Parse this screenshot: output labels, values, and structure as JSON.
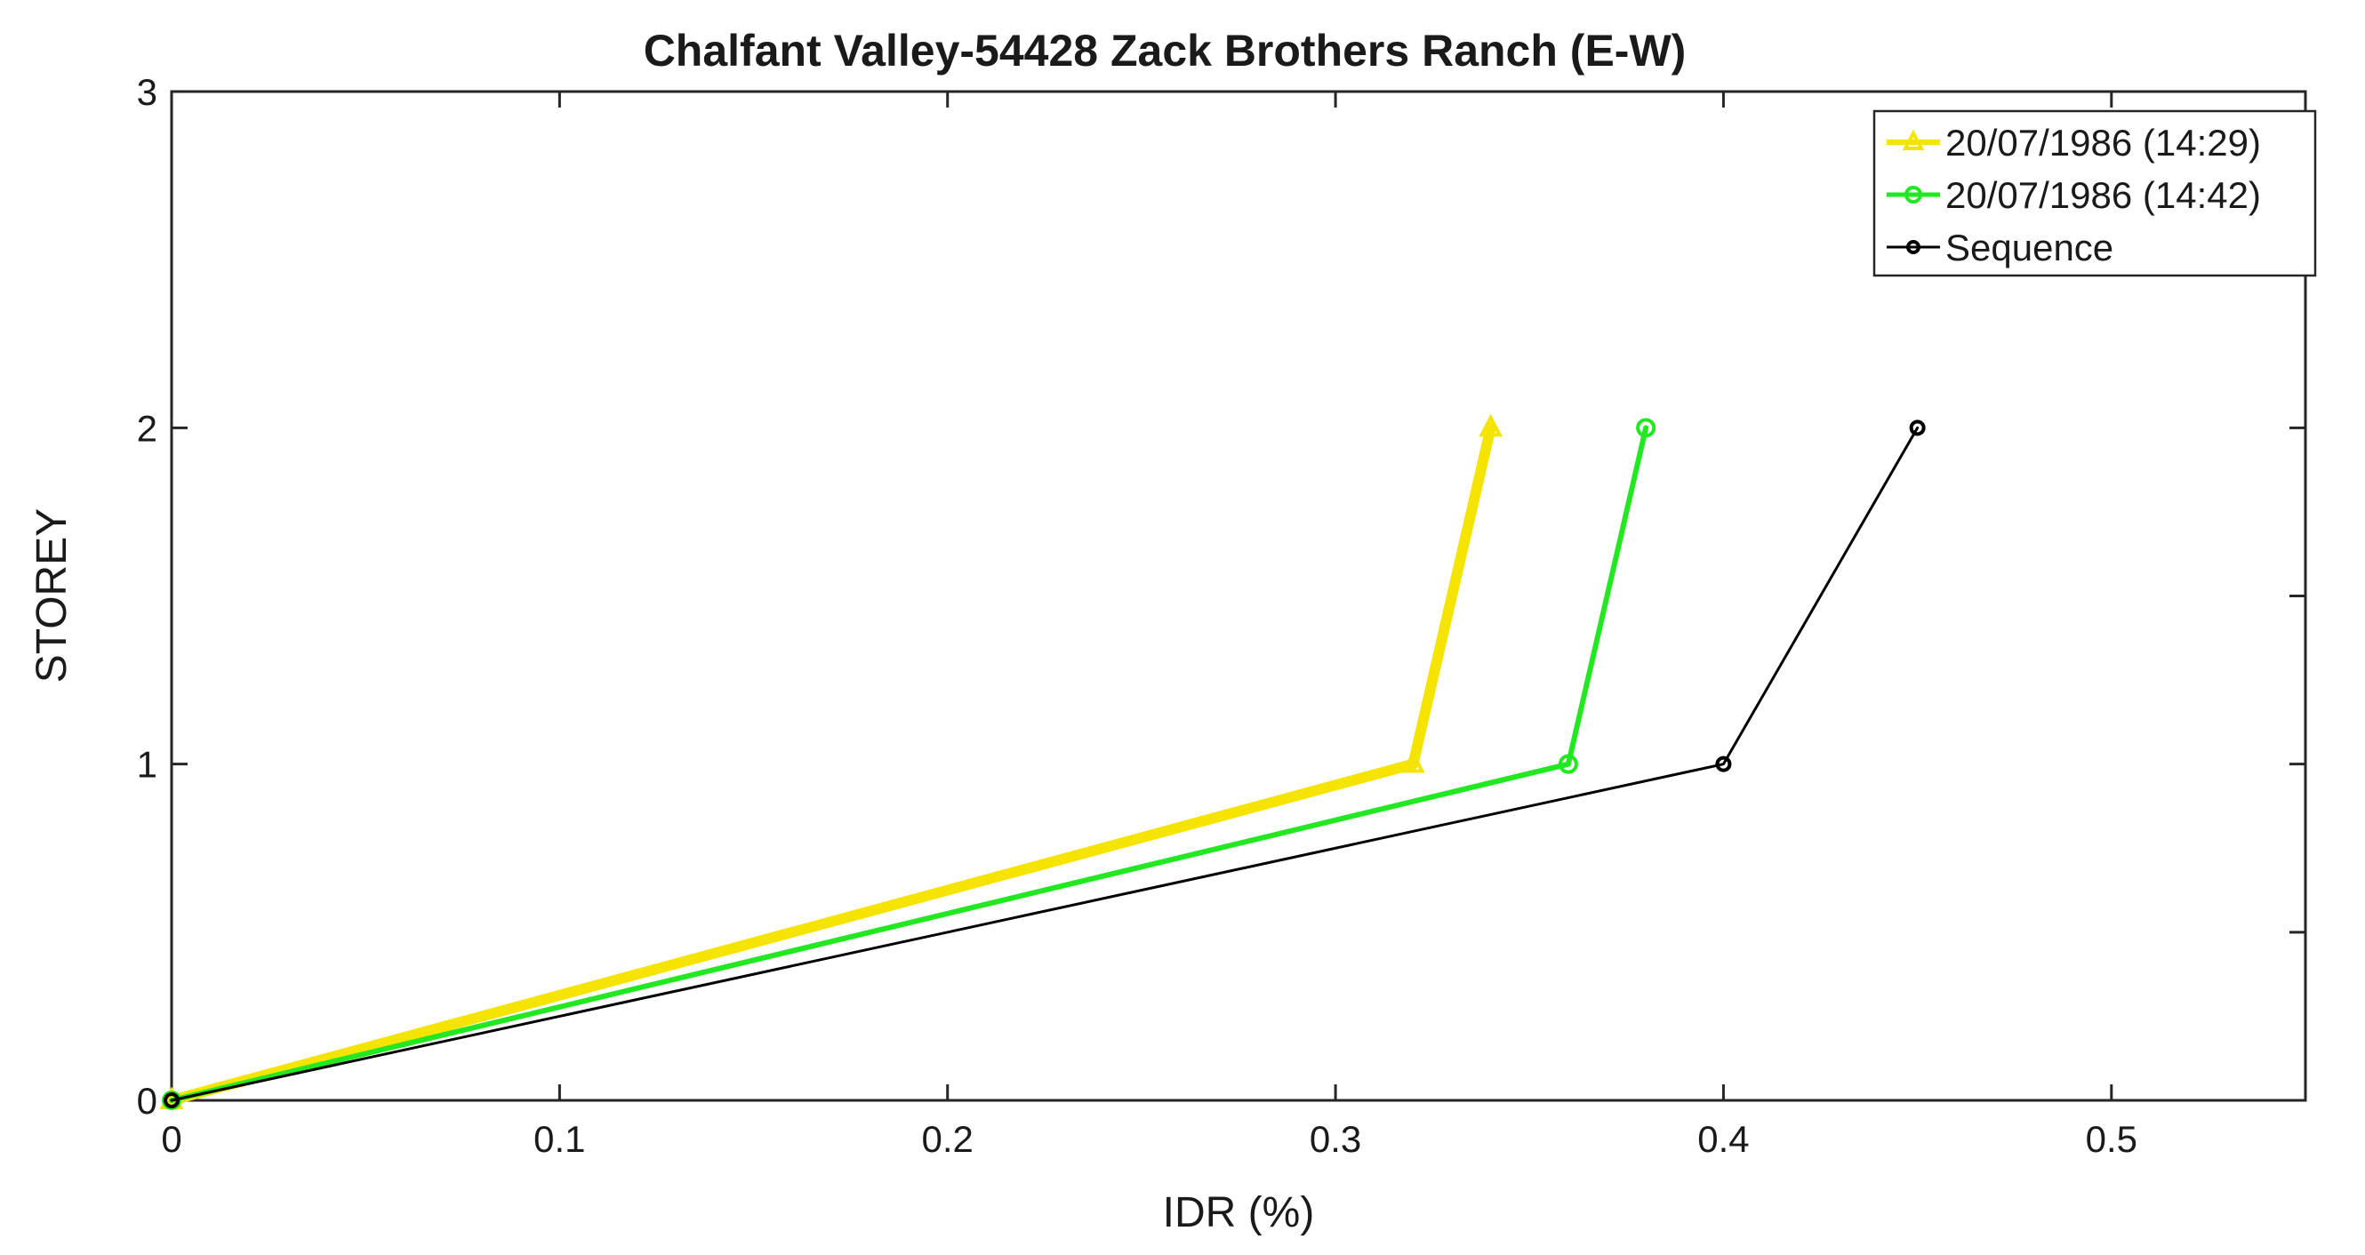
{
  "chart_data": {
    "type": "line",
    "title": "Chalfant Valley-54428 Zack Brothers Ranch (E-W)",
    "xlabel": "IDR (%)",
    "ylabel": "STOREY",
    "xlim": [
      0,
      0.55
    ],
    "ylim": [
      0,
      3
    ],
    "xticks": [
      0,
      0.1,
      0.2,
      0.3,
      0.4,
      0.5
    ],
    "xtick_labels": [
      "0",
      "0.1",
      "0.2",
      "0.3",
      "0.4",
      "0.5"
    ],
    "yticks": [
      0,
      1,
      2,
      3
    ],
    "ytick_labels": [
      "0",
      "1",
      "2",
      "3"
    ],
    "grid": false,
    "legend_position": "top-right",
    "series": [
      {
        "name": "20/07/1986 (14:29)",
        "color": "#f5e400",
        "marker": "triangle-up",
        "x": [
          0,
          0.32,
          0.34
        ],
        "y": [
          0,
          1,
          2
        ]
      },
      {
        "name": "20/07/1986 (14:42)",
        "color": "#22e822",
        "marker": "circle",
        "x": [
          0,
          0.36,
          0.38
        ],
        "y": [
          0,
          1,
          2
        ]
      },
      {
        "name": "Sequence",
        "color": "#000000",
        "marker": "circle",
        "x": [
          0,
          0.4,
          0.45
        ],
        "y": [
          0,
          1,
          2
        ]
      }
    ]
  }
}
